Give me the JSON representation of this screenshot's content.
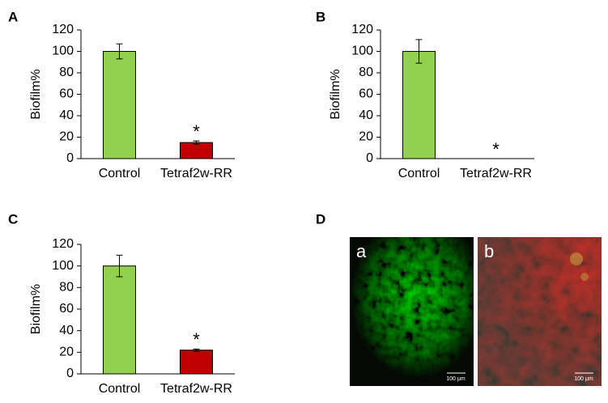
{
  "chart_data": [
    {
      "type": "bar",
      "panel": "A",
      "ylabel": "Biofilm%",
      "categories": [
        "Control",
        "Tetraf2w-RR"
      ],
      "values": [
        100,
        15
      ],
      "errors": [
        7,
        1.5
      ],
      "colors": [
        "#92d050",
        "#c00000"
      ],
      "ylim": [
        0,
        120
      ],
      "yticks": [
        0,
        20,
        40,
        60,
        80,
        100,
        120
      ],
      "grid": false,
      "annotations": [
        {
          "text": "*",
          "x": "Tetraf2w-RR"
        }
      ]
    },
    {
      "type": "bar",
      "panel": "B",
      "ylabel": "Biofilm%",
      "categories": [
        "Control",
        "Tetraf2w-RR"
      ],
      "values": [
        100,
        0
      ],
      "errors": [
        11,
        0
      ],
      "colors": [
        "#92d050",
        "#c00000"
      ],
      "ylim": [
        0,
        120
      ],
      "yticks": [
        0,
        20,
        40,
        60,
        80,
        100,
        120
      ],
      "grid": false,
      "annotations": [
        {
          "text": "*",
          "x": "Tetraf2w-RR"
        }
      ]
    },
    {
      "type": "bar",
      "panel": "C",
      "ylabel": "Biofilm%",
      "categories": [
        "Control",
        "Tetraf2w-RR"
      ],
      "values": [
        100,
        22
      ],
      "errors": [
        10,
        1
      ],
      "colors": [
        "#92d050",
        "#c00000"
      ],
      "ylim": [
        0,
        120
      ],
      "yticks": [
        0,
        20,
        40,
        60,
        80,
        100,
        120
      ],
      "grid": false,
      "annotations": [
        {
          "text": "*",
          "x": "Tetraf2w-RR"
        }
      ]
    }
  ],
  "image_panel": {
    "panel": "D",
    "images": [
      {
        "label": "a",
        "scale_bar": "100 μm"
      },
      {
        "label": "b",
        "scale_bar": "100 μm"
      }
    ]
  }
}
